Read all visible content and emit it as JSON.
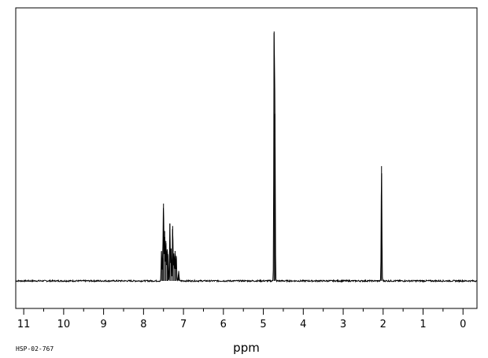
{
  "chart_data": {
    "type": "line",
    "title": "",
    "xlabel": "ppm",
    "ylabel": "",
    "xlim": [
      11.2,
      -0.35
    ],
    "x_reversed": true,
    "ylim": [
      0,
      1.0
    ],
    "grid": false,
    "legend": "none",
    "x_ticks": [
      11,
      10,
      9,
      8,
      7,
      6,
      5,
      4,
      3,
      2,
      1,
      0
    ],
    "x_tick_labels": [
      "11",
      "10",
      "9",
      "8",
      "7",
      "6",
      "5",
      "4",
      "3",
      "2",
      "1",
      "0"
    ],
    "minor_tick_step": 0.5,
    "baseline": 0.0,
    "peaks": [
      {
        "x": 7.55,
        "y": 0.12
      },
      {
        "x": 7.52,
        "y": 0.09
      },
      {
        "x": 7.5,
        "y": 0.31
      },
      {
        "x": 7.47,
        "y": 0.2
      },
      {
        "x": 7.44,
        "y": 0.16
      },
      {
        "x": 7.41,
        "y": 0.12
      },
      {
        "x": 7.39,
        "y": 0.1
      },
      {
        "x": 7.34,
        "y": 0.23
      },
      {
        "x": 7.31,
        "y": 0.13
      },
      {
        "x": 7.27,
        "y": 0.22
      },
      {
        "x": 7.24,
        "y": 0.11
      },
      {
        "x": 7.21,
        "y": 0.12
      },
      {
        "x": 7.18,
        "y": 0.1
      },
      {
        "x": 7.12,
        "y": 0.04
      },
      {
        "x": 4.73,
        "y": 1.0
      },
      {
        "x": 4.71,
        "y": 0.67
      },
      {
        "x": 2.04,
        "y": 0.46
      }
    ],
    "series": [
      {
        "color": "#000000"
      }
    ],
    "annotations": [
      "HSP-02-767"
    ]
  }
}
